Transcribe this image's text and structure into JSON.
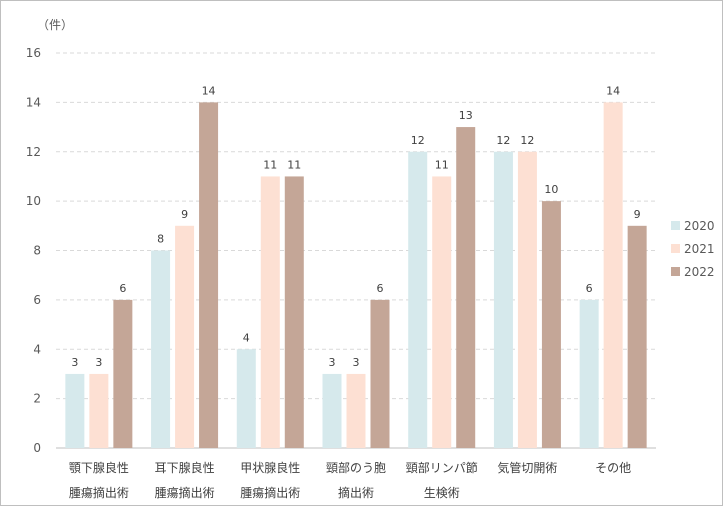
{
  "chart_data": {
    "type": "bar",
    "unit_label": "（件）",
    "title": "",
    "xlabel": "",
    "ylabel": "",
    "ylim": [
      0,
      16
    ],
    "yticks": [
      0,
      2,
      4,
      6,
      8,
      10,
      12,
      14,
      16
    ],
    "grid": true,
    "legend_position": "right",
    "categories": [
      [
        "顎下腺良性",
        "腫瘍摘出術"
      ],
      [
        "耳下腺良性",
        "腫瘍摘出術"
      ],
      [
        "甲状腺良性",
        "腫瘍摘出術"
      ],
      [
        "頸部のう胞",
        "摘出術"
      ],
      [
        "頸部リンパ節",
        "生検術"
      ],
      [
        "気管切開術"
      ],
      [
        "その他"
      ]
    ],
    "series": [
      {
        "name": "2020",
        "color": "#d6e9ec",
        "values": [
          3,
          8,
          4,
          3,
          12,
          12,
          6
        ]
      },
      {
        "name": "2021",
        "color": "#fde0d3",
        "values": [
          3,
          9,
          11,
          3,
          11,
          12,
          14
        ]
      },
      {
        "name": "2022",
        "color": "#c4a697",
        "values": [
          6,
          14,
          11,
          6,
          13,
          10,
          9
        ]
      }
    ]
  }
}
